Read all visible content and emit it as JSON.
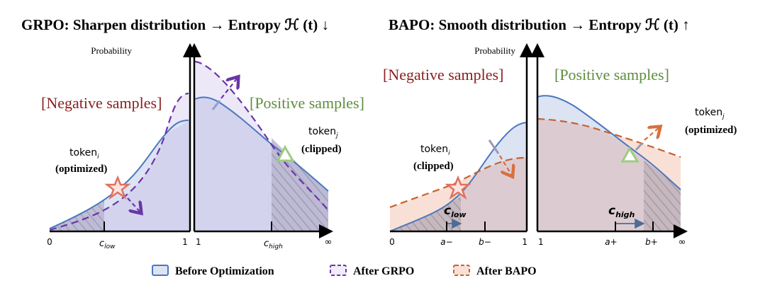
{
  "titles": {
    "grpo": "GRPO: Sharpen distribution → Entropy ℋ (t) ↓",
    "bapo": "BAPO: Smooth distribution → Entropy ℋ (t) ↑"
  },
  "axis": {
    "y_label": "Probability",
    "grpo_ticks": [
      "0",
      "c_low",
      "1",
      "1",
      "c_high",
      "∞"
    ],
    "bapo_ticks": [
      "0",
      "a−",
      "b−",
      "1",
      "1",
      "a+",
      "b+",
      "∞"
    ]
  },
  "grpo": {
    "negative_label": "[Negative samples]",
    "positive_label": "[Positive samples]",
    "token_i": "token",
    "token_i_sub": "i",
    "token_i_state": "(optimized)",
    "token_j": "token",
    "token_j_sub": "j",
    "token_j_state": "(clipped)",
    "c_low": "c",
    "c_low_sub": "low",
    "c_high": "c",
    "c_high_sub": "high"
  },
  "bapo": {
    "negative_label": "[Negative samples]",
    "positive_label": "[Positive samples]",
    "token_i": "token",
    "token_i_sub": "i",
    "token_i_state": "(clipped)",
    "token_j": "token",
    "token_j_sub": "j",
    "token_j_state": "(optimized)",
    "c_low": "c",
    "c_low_sub": "low",
    "c_high": "c",
    "c_high_sub": "high"
  },
  "legend": [
    {
      "label": "Before Optimization",
      "style": "solid",
      "color": "#4a78c0"
    },
    {
      "label": "After GRPO",
      "style": "dashed",
      "color": "#6a35a8"
    },
    {
      "label": "After BAPO",
      "style": "dashed",
      "color": "#c8612f"
    }
  ],
  "colors": {
    "negative": "#8b1e1e",
    "positive": "#5e8e3e",
    "before": "#4a78c0",
    "grpo": "#6a35a8",
    "bapo": "#c8612f",
    "star": "#e07060",
    "triangle": "#9ccc80"
  }
}
